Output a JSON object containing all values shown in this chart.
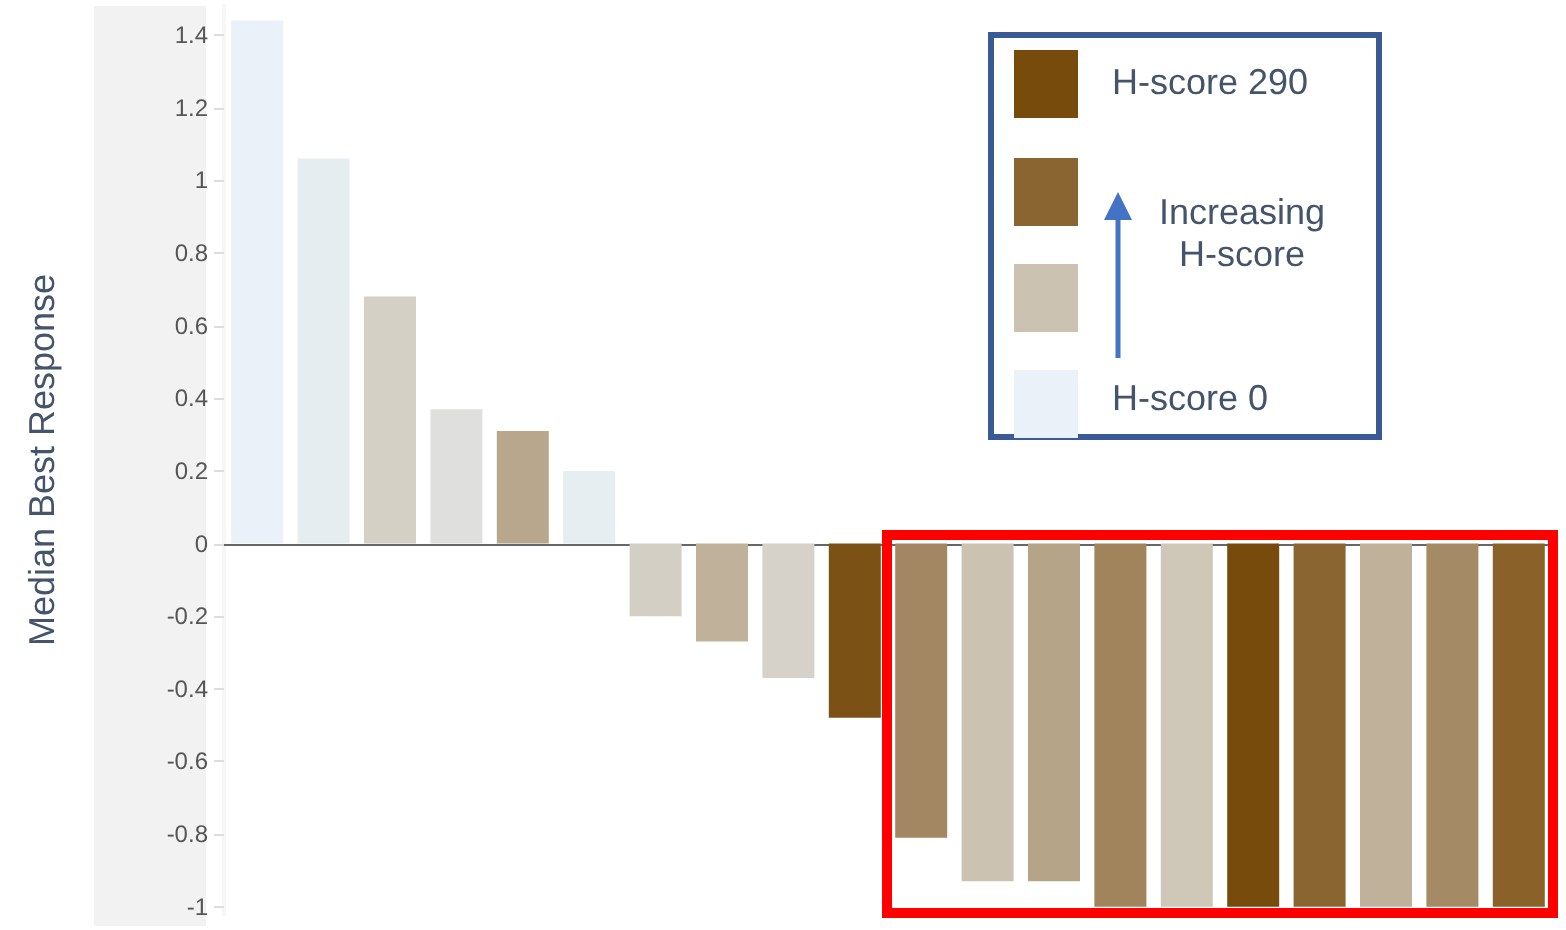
{
  "chart_data": {
    "type": "bar",
    "ylabel": "Median Best Response",
    "categories": [
      null,
      null,
      null,
      null,
      null,
      null,
      null,
      null,
      null,
      null,
      null,
      null,
      null,
      null,
      null,
      null,
      null,
      null,
      null,
      null
    ],
    "values": [
      1.44,
      1.06,
      0.68,
      0.37,
      0.31,
      0.2,
      -0.2,
      -0.27,
      -0.37,
      -0.48,
      -0.81,
      -0.93,
      -0.93,
      -1,
      -1,
      -1,
      -1,
      -1,
      -1,
      -1
    ],
    "colors": [
      "#eaf1f8",
      "#e6edf0",
      "#d4d0c6",
      "#dfe0dd",
      "#b9a78d",
      "#e6eef1",
      "#d4cfc4",
      "#c0b19a",
      "#d6d2ca",
      "#7b5116",
      "#a38763",
      "#cbc2b2",
      "#b5a487",
      "#a1845b",
      "#cfc7b8",
      "#774b0c",
      "#8a6532",
      "#c0b19a",
      "#a58a66",
      "#8a6229"
    ],
    "ylim": [
      -1.02,
      1.48
    ],
    "yticks": [
      -1,
      -0.8,
      -0.6,
      -0.4,
      -0.2,
      0,
      0.2,
      0.4,
      0.6,
      0.8,
      1,
      1.2,
      1.4
    ],
    "annotations": [
      "H-score 290",
      "Increasing H-score",
      "H-score 0"
    ]
  }
}
